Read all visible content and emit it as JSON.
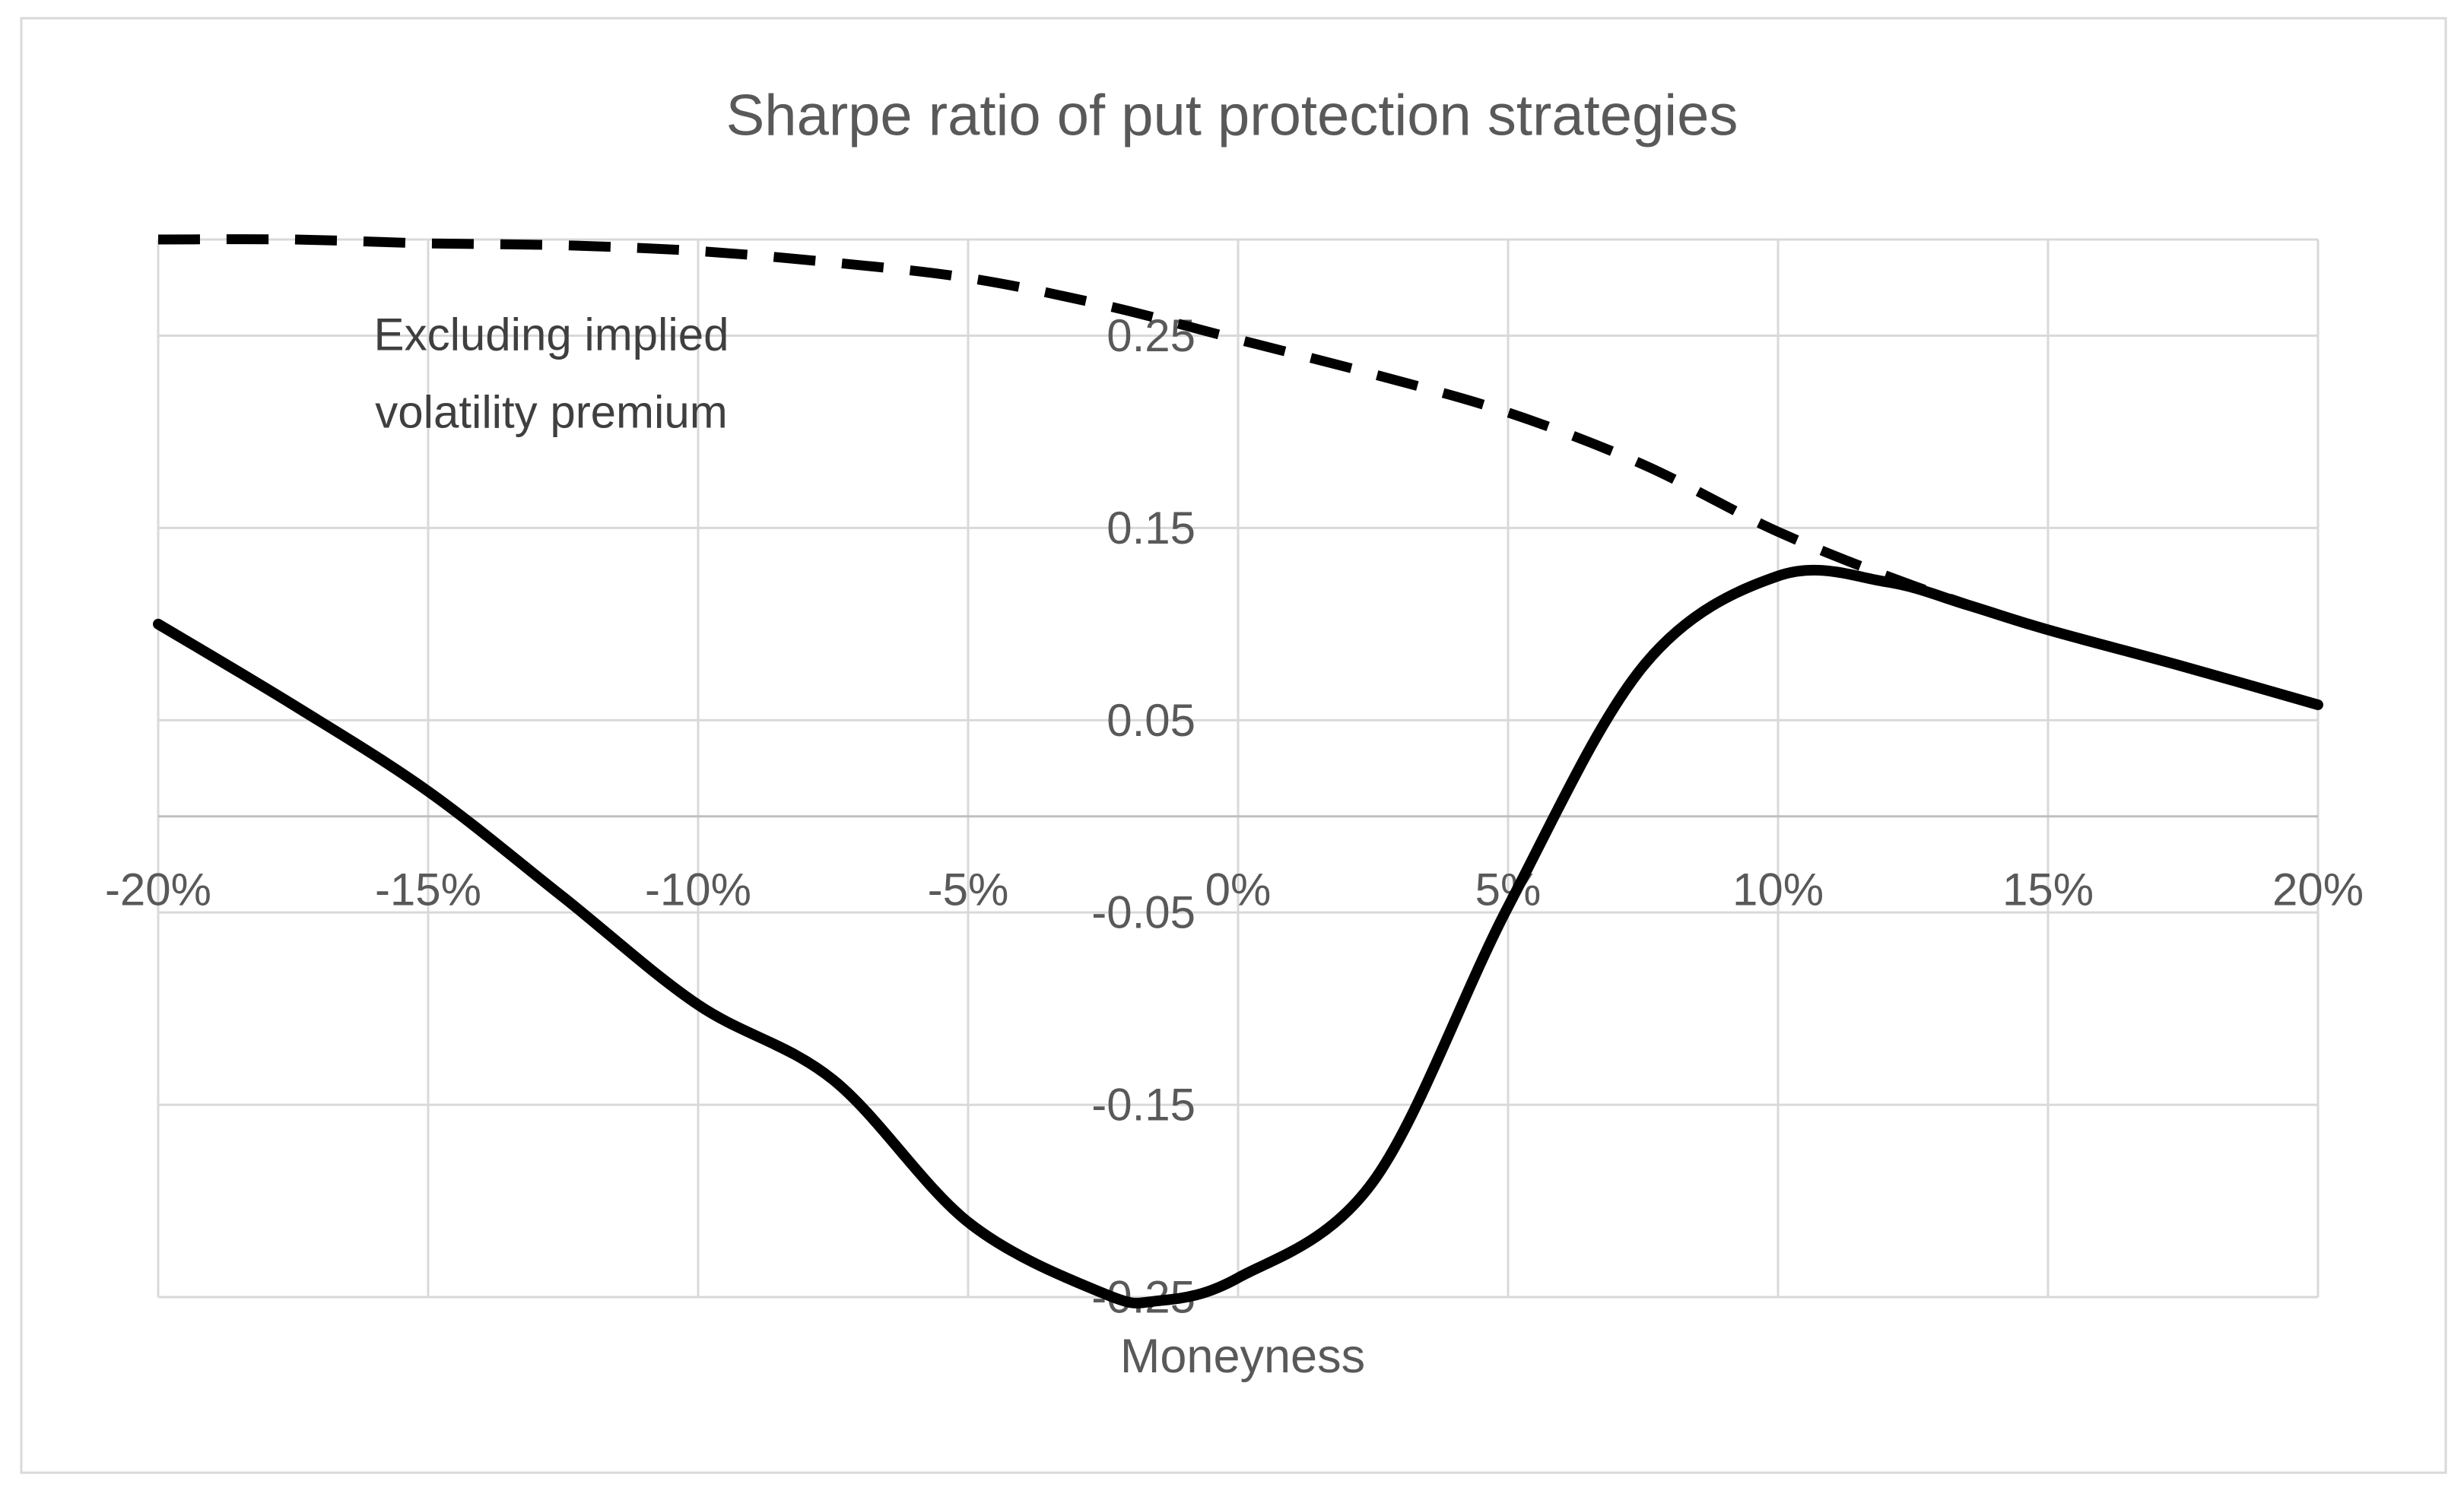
{
  "page": {
    "background": "#ffffff"
  },
  "chart_data": {
    "type": "line",
    "title": "Sharpe ratio of put protection strategies",
    "xlabel": "Moneyness",
    "ylabel": "",
    "x_ticks": [
      "-20%",
      "-15%",
      "-10%",
      "-5%",
      "0%",
      "5%",
      "10%",
      "15%",
      "20%"
    ],
    "x_tick_values": [
      -20,
      -15,
      -10,
      -5,
      0,
      5,
      10,
      15,
      20
    ],
    "y_ticks": [
      "0.25",
      "0.15",
      "0.05",
      "-0.05",
      "-0.15",
      "-0.25"
    ],
    "y_tick_values": [
      0.25,
      0.15,
      0.05,
      -0.05,
      -0.15,
      -0.25
    ],
    "xlim": [
      -20,
      20
    ],
    "ylim": [
      -0.25,
      0.3
    ],
    "grid": true,
    "zero_line_value": 0,
    "legend_position": "none",
    "annotation": {
      "text_lines": [
        "Excluding implied",
        "volatility premium"
      ],
      "refers_to_series": "excluding-implied-volatility-premium"
    },
    "series": [
      {
        "id": "excluding-implied-volatility-premium",
        "label": "Excluding implied volatility premium",
        "line_style": "dashed",
        "color": "#000000",
        "x": [
          -20,
          -17.5,
          -15,
          -12.5,
          -10,
          -7.5,
          -5,
          -2.5,
          0,
          2.5,
          5,
          7.5,
          10,
          12.5,
          15,
          17.5,
          20
        ],
        "y": [
          0.3,
          0.3,
          0.298,
          0.297,
          0.294,
          0.288,
          0.28,
          0.266,
          0.248,
          0.23,
          0.21,
          0.183,
          0.148,
          0.12,
          0.097,
          0.078,
          0.058
        ]
      },
      {
        "id": "put-protection-sharpe",
        "label": "",
        "line_style": "solid",
        "color": "#000000",
        "x": [
          -20,
          -17.5,
          -15,
          -12.5,
          -10,
          -7.5,
          -5,
          -2.5,
          -1.5,
          0,
          2.5,
          5,
          7.5,
          10,
          12,
          13.5,
          15,
          17.5,
          20
        ],
        "y": [
          0.1,
          0.058,
          0.013,
          -0.042,
          -0.098,
          -0.137,
          -0.211,
          -0.248,
          -0.252,
          -0.24,
          -0.19,
          -0.047,
          0.078,
          0.125,
          0.122,
          0.11,
          0.097,
          0.078,
          0.058
        ]
      }
    ],
    "colors": {
      "gridline": "#d9d9d9",
      "chart_border": "#d9d9d9",
      "axis_zero_line": "#bfbfbf",
      "text": "#595959",
      "annotation_text": "#3f3f3f",
      "series": "#000000"
    }
  }
}
